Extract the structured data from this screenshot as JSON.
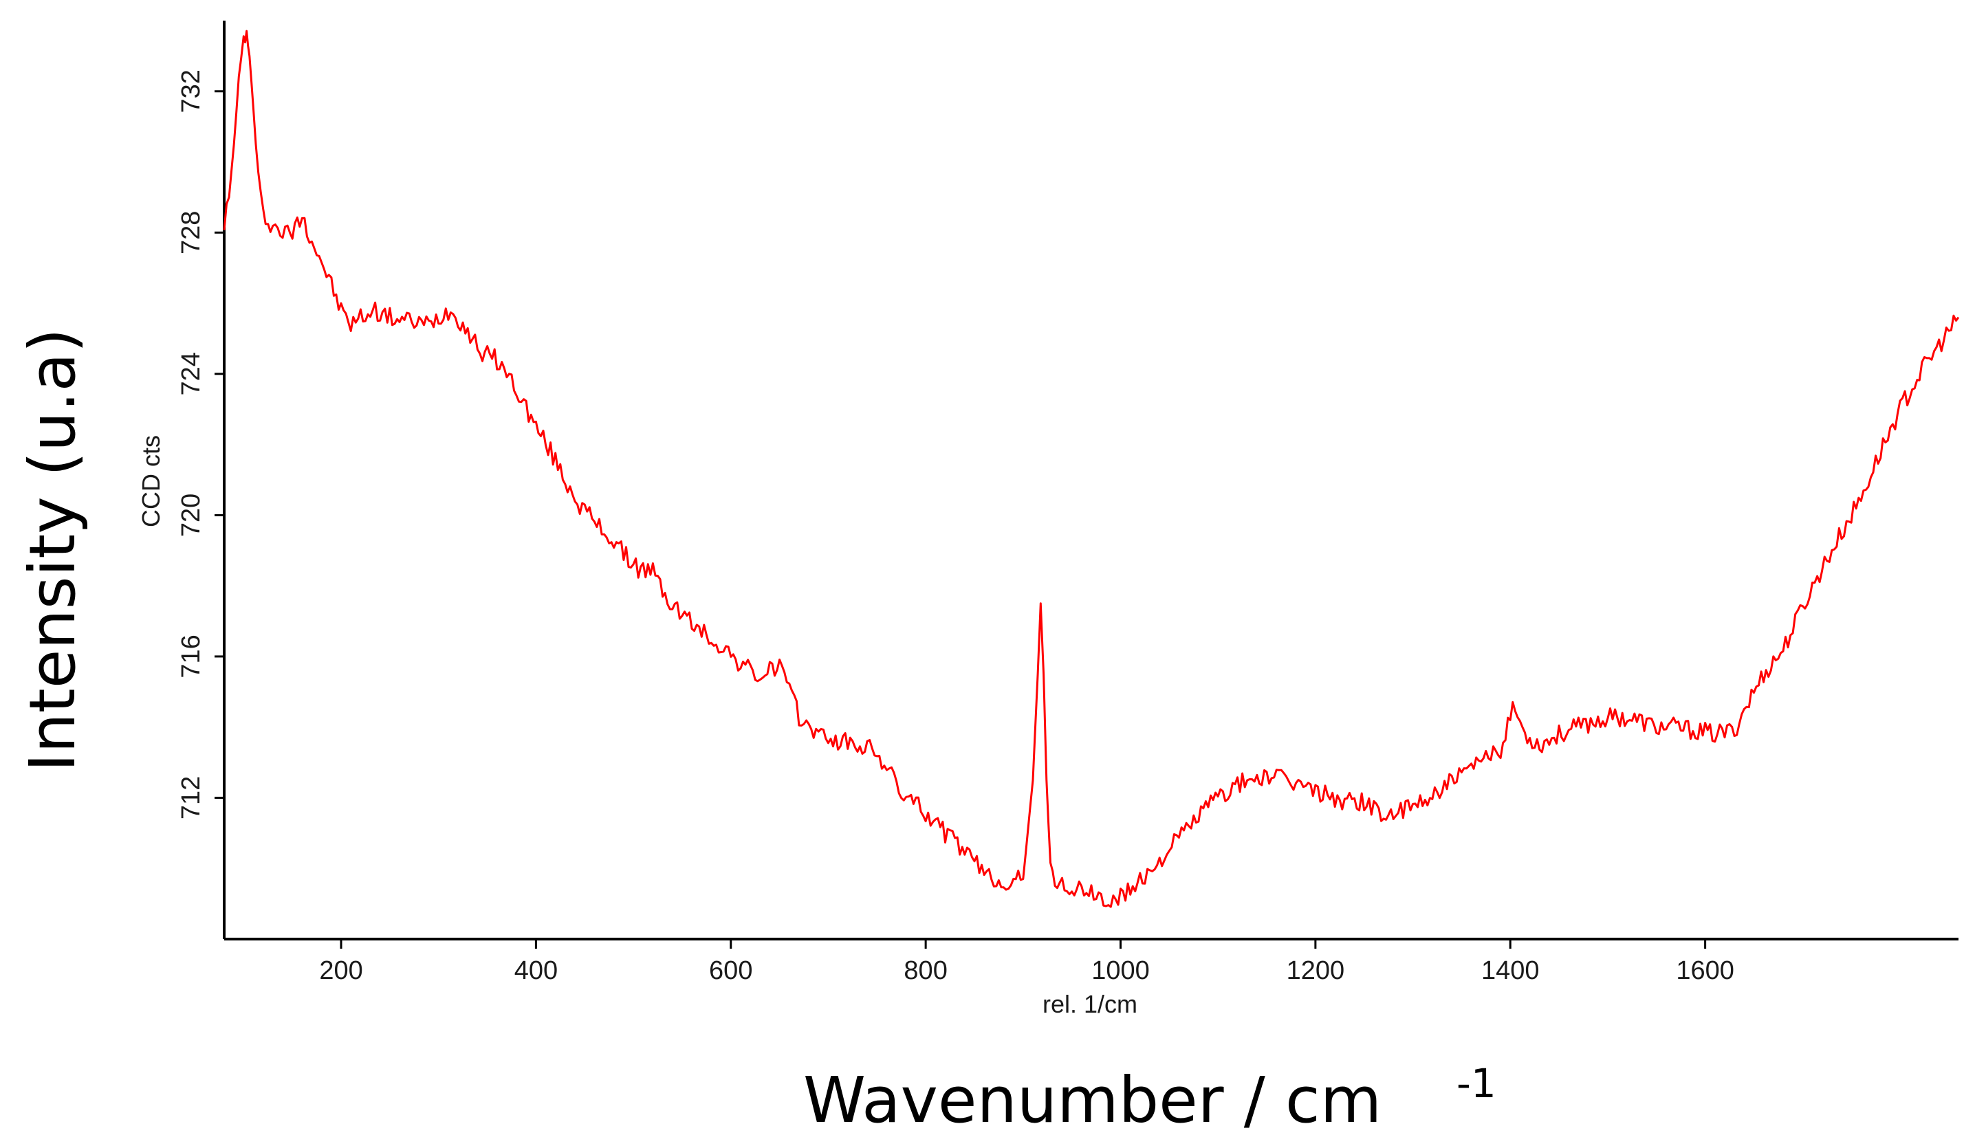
{
  "chart_data": {
    "type": "line",
    "title": "",
    "inner_ylabel": "CCD cts",
    "inner_xlabel": "rel. 1/cm",
    "outer_ylabel": "Intensity (u.a)",
    "outer_xlabel": "Wavenumber / cm",
    "outer_xlabel_sup": "-1",
    "xlim": [
      80,
      1860
    ],
    "ylim": [
      708,
      734
    ],
    "xticks": [
      "200",
      "400",
      "600",
      "800",
      "1000",
      "1200",
      "1400",
      "1600"
    ],
    "yticks": [
      "712",
      "716",
      "720",
      "724",
      "728",
      "732"
    ],
    "grid": false,
    "legend": "none",
    "series": [
      {
        "color": "#ff0000",
        "x": [
          80,
          85,
          90,
          95,
          100,
          103,
          106,
          110,
          115,
          120,
          130,
          140,
          150,
          160,
          170,
          180,
          190,
          200,
          210,
          220,
          235,
          250,
          270,
          290,
          310,
          320,
          330,
          345,
          360,
          375,
          385,
          400,
          415,
          430,
          445,
          460,
          475,
          490,
          505,
          520,
          535,
          550,
          570,
          590,
          610,
          630,
          650,
          660,
          670,
          690,
          710,
          730,
          750,
          760,
          780,
          800,
          820,
          840,
          855,
          870,
          885,
          900,
          910,
          915,
          918,
          921,
          924,
          928,
          935,
          950,
          970,
          990,
          1000,
          1020,
          1045,
          1070,
          1090,
          1110,
          1130,
          1150,
          1170,
          1190,
          1210,
          1230,
          1250,
          1270,
          1290,
          1310,
          1330,
          1350,
          1370,
          1390,
          1400,
          1405,
          1415,
          1430,
          1450,
          1470,
          1490,
          1510,
          1530,
          1550,
          1570,
          1590,
          1610,
          1630,
          1640,
          1660,
          1680,
          1700,
          1720,
          1740,
          1760,
          1780,
          1800,
          1820,
          1840,
          1860
        ],
        "y": [
          728.3,
          729.0,
          730.5,
          732.3,
          733.5,
          733.6,
          733.0,
          731.5,
          729.5,
          728.5,
          728.2,
          728.0,
          728.0,
          728.5,
          727.8,
          727.2,
          726.5,
          725.8,
          725.4,
          725.6,
          725.8,
          725.6,
          725.5,
          725.4,
          725.8,
          725.6,
          725.2,
          724.6,
          724.4,
          723.8,
          723.3,
          722.5,
          721.8,
          721.0,
          720.3,
          719.8,
          719.4,
          718.9,
          718.5,
          718.4,
          717.6,
          717.2,
          716.7,
          716.3,
          715.8,
          715.4,
          715.8,
          715.0,
          714.3,
          713.8,
          713.6,
          713.5,
          713.3,
          712.8,
          712.0,
          711.6,
          711.0,
          710.5,
          710.0,
          709.7,
          709.6,
          709.7,
          712.5,
          715.5,
          717.5,
          715.5,
          712.5,
          710.0,
          709.6,
          709.4,
          709.3,
          709.0,
          709.2,
          709.6,
          710.4,
          711.2,
          711.8,
          712.2,
          712.5,
          712.6,
          712.5,
          712.3,
          712.1,
          711.9,
          711.9,
          711.5,
          711.6,
          711.9,
          712.3,
          712.6,
          713.0,
          713.4,
          714.4,
          714.5,
          713.8,
          713.5,
          713.8,
          714.0,
          714.2,
          714.3,
          714.2,
          714.0,
          714.0,
          713.9,
          713.8,
          713.9,
          714.5,
          715.5,
          716.2,
          717.4,
          718.5,
          719.5,
          720.5,
          721.8,
          723.0,
          724.0,
          724.8,
          725.6
        ]
      }
    ]
  }
}
